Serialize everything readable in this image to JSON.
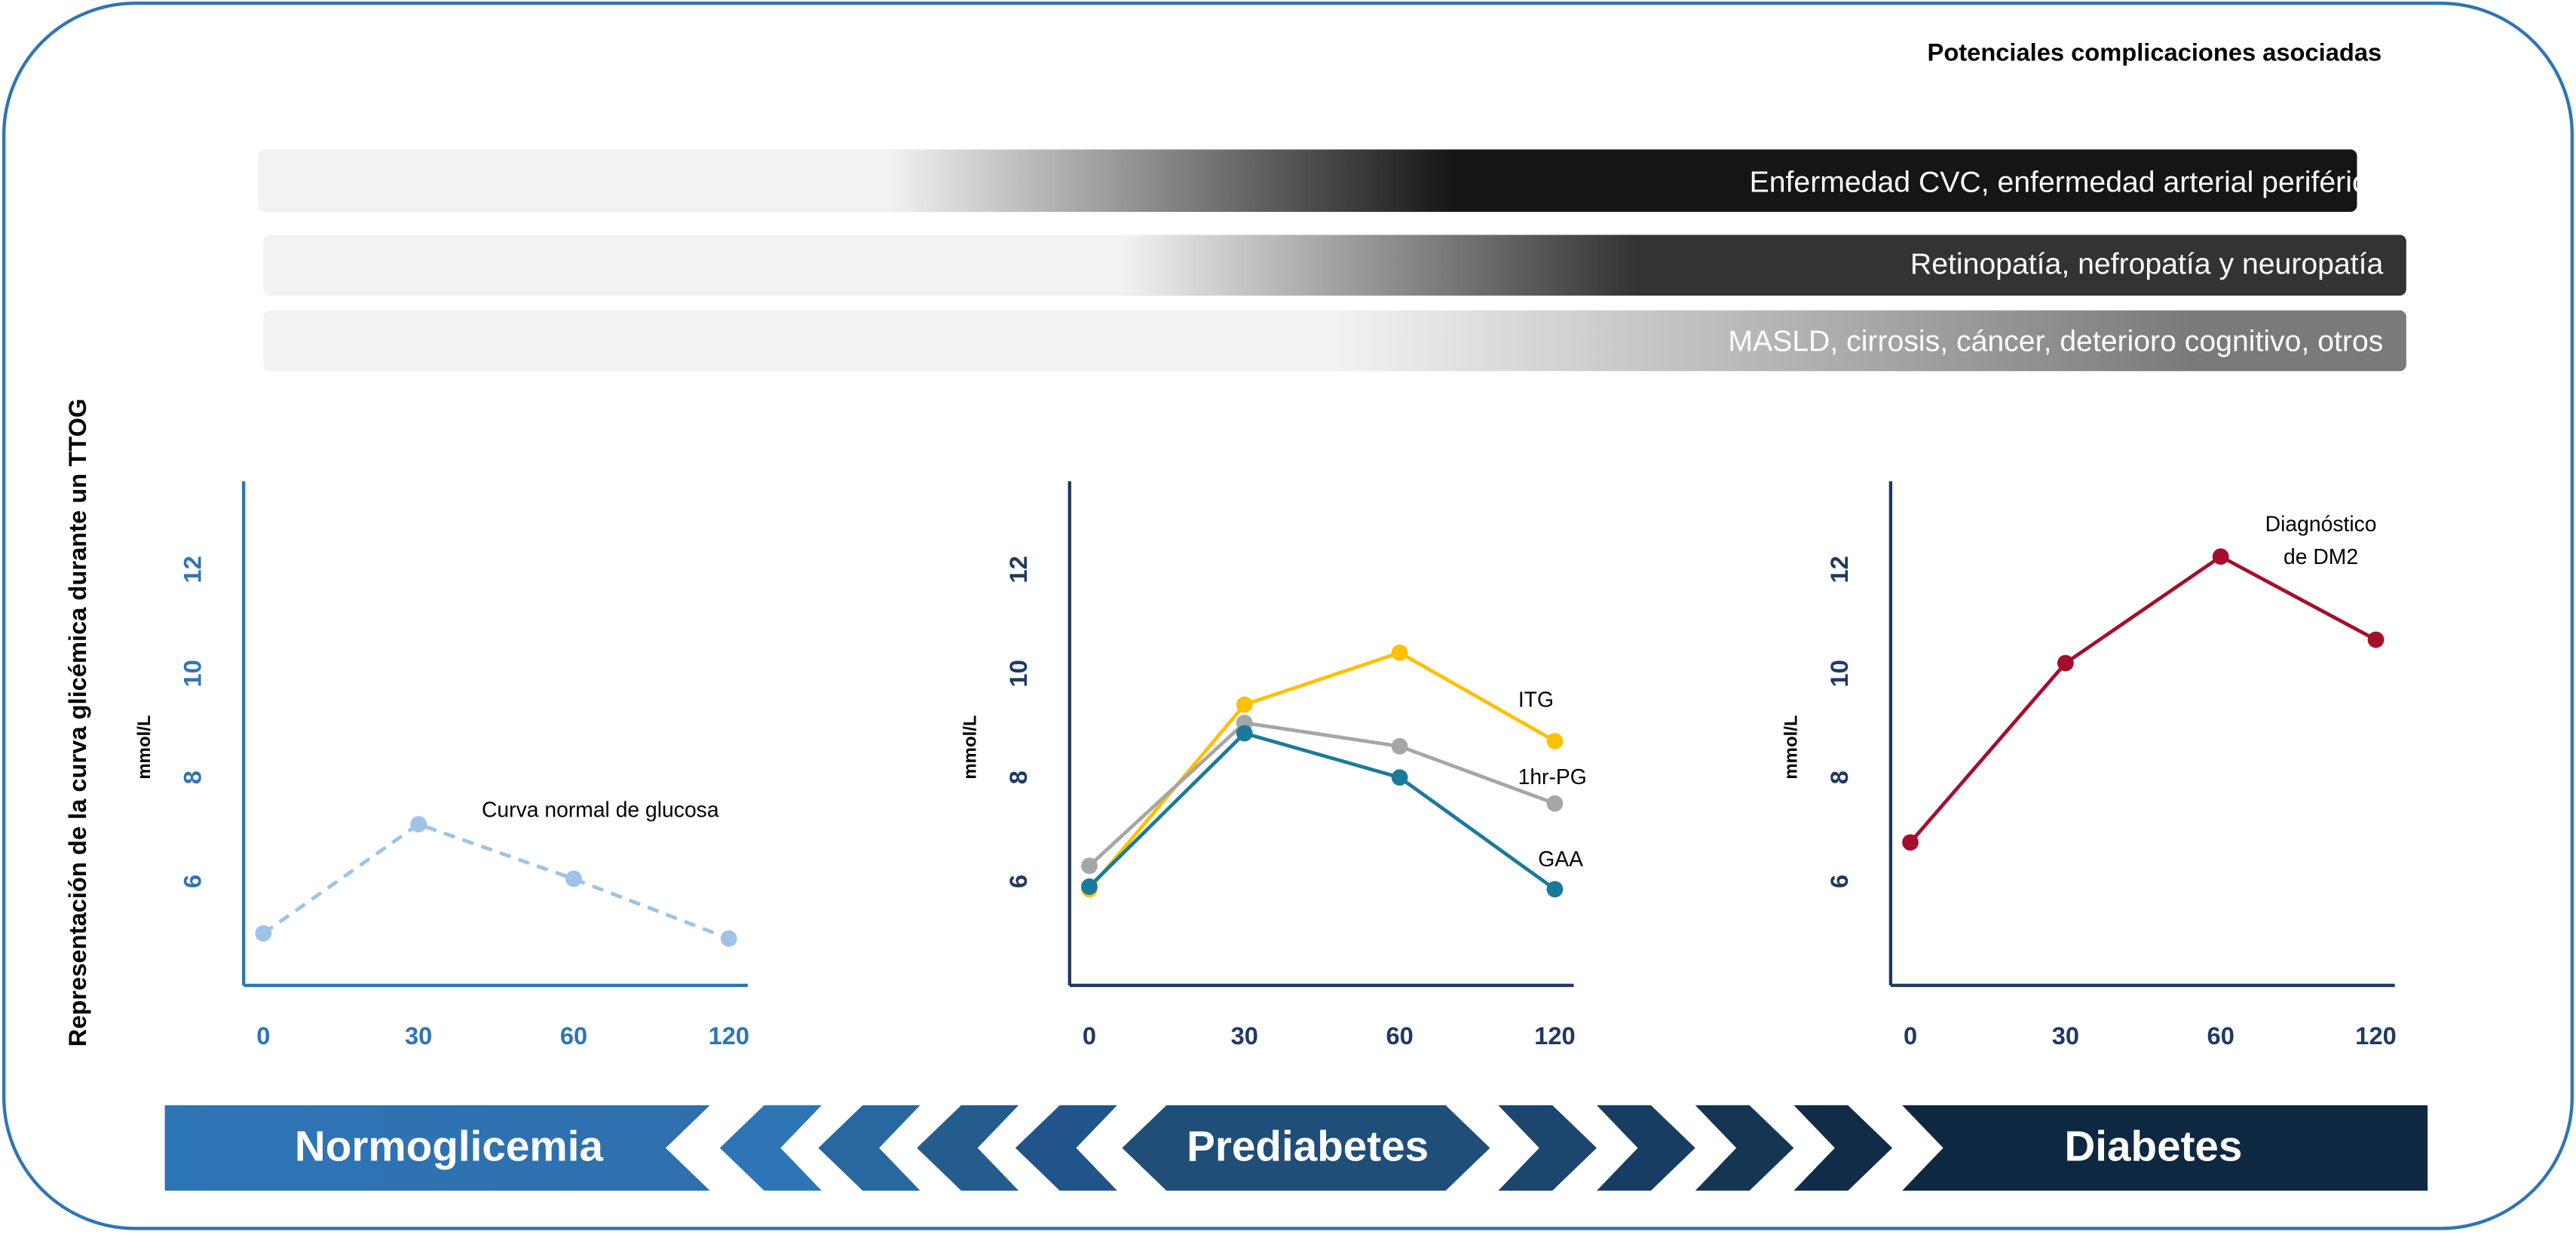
{
  "header": {
    "title": "Potenciales complicaciones asociadas"
  },
  "complications": [
    "Enfermedad CVC, enfermedad arterial periférica",
    "Retinopatía, nefropatía y neuropatía",
    "MASLD, cirrosis, cáncer, deterioro cognitivo, otros"
  ],
  "side_label": "Representación de la curva glicémica durante un TTOG",
  "stages": [
    "Normoglicemia",
    "Prediabetes",
    "Diabetes"
  ],
  "chart_data": [
    {
      "type": "line",
      "y_label": "mmol/L",
      "categories": [
        "0",
        "30",
        "60",
        "120"
      ],
      "ylim": [
        4,
        13.7
      ],
      "yticks": [
        6,
        8,
        10,
        12
      ],
      "axis_color": "#2e75b6",
      "dashed": true,
      "series": [
        {
          "name": "Curva normal de glucosa",
          "color": "#9dc3e6",
          "values": [
            5.0,
            7.1,
            6.05,
            4.9
          ]
        }
      ]
    },
    {
      "type": "line",
      "y_label": "mmol/L",
      "categories": [
        "0",
        "30",
        "60",
        "120"
      ],
      "ylim": [
        4,
        13.7
      ],
      "yticks": [
        6,
        8,
        10,
        12
      ],
      "axis_color": "#1f3864",
      "dashed": false,
      "series": [
        {
          "name": "ITG",
          "color": "#ffc000",
          "values": [
            5.85,
            9.4,
            10.4,
            8.7
          ]
        },
        {
          "name": "1hr-PG",
          "color": "#a6a6a6",
          "values": [
            6.3,
            9.05,
            8.6,
            7.5
          ]
        },
        {
          "name": "GAA",
          "color": "#1b7a9b",
          "values": [
            5.9,
            8.85,
            8.0,
            5.85
          ]
        }
      ]
    },
    {
      "type": "line",
      "y_label": "mmol/L",
      "categories": [
        "0",
        "30",
        "60",
        "120"
      ],
      "ylim": [
        4,
        13.7
      ],
      "yticks": [
        6,
        8,
        10,
        12
      ],
      "axis_color": "#1f3864",
      "dashed": false,
      "annotation": [
        "Diagnóstico",
        "de DM2"
      ],
      "series": [
        {
          "color": "#a50f2d",
          "values": [
            6.75,
            10.2,
            12.25,
            10.65
          ]
        }
      ]
    }
  ]
}
